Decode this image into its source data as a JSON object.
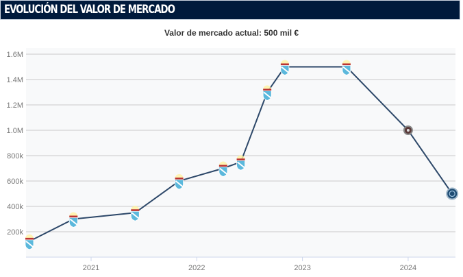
{
  "header": {
    "title": "EVOLUCIÓN DEL VALOR DE MERCADO"
  },
  "subtitle": "Valor de mercado actual: 500 mil €",
  "chart_data": {
    "type": "line",
    "title": "",
    "xlabel": "",
    "ylabel": "",
    "x_ticks": [
      "2021",
      "2022",
      "2023",
      "2024"
    ],
    "y_ticks": [
      "200k",
      "400k",
      "600k",
      "800k",
      "1.0M",
      "1.2M",
      "1.4M",
      "1.6M"
    ],
    "ylim": [
      0,
      1600000
    ],
    "xlim": [
      "2020-06",
      "2024-06"
    ],
    "grid": true,
    "line_color": "#2d4869",
    "points": [
      {
        "date": "2020-06",
        "value": 125000,
        "club": "club-a"
      },
      {
        "date": "2020-11",
        "value": 300000,
        "club": "club-a"
      },
      {
        "date": "2021-06",
        "value": 350000,
        "club": "club-a"
      },
      {
        "date": "2021-11",
        "value": 600000,
        "club": "club-a"
      },
      {
        "date": "2022-04",
        "value": 700000,
        "club": "club-a"
      },
      {
        "date": "2022-06",
        "value": 750000,
        "club": "club-a"
      },
      {
        "date": "2022-09",
        "value": 1300000,
        "club": "club-a"
      },
      {
        "date": "2022-11",
        "value": 1500000,
        "club": "club-a"
      },
      {
        "date": "2023-06",
        "value": 1500000,
        "club": "club-a"
      },
      {
        "date": "2024-01",
        "value": 1000000,
        "club": "club-b"
      },
      {
        "date": "2024-06",
        "value": 500000,
        "club": "club-c"
      }
    ]
  }
}
